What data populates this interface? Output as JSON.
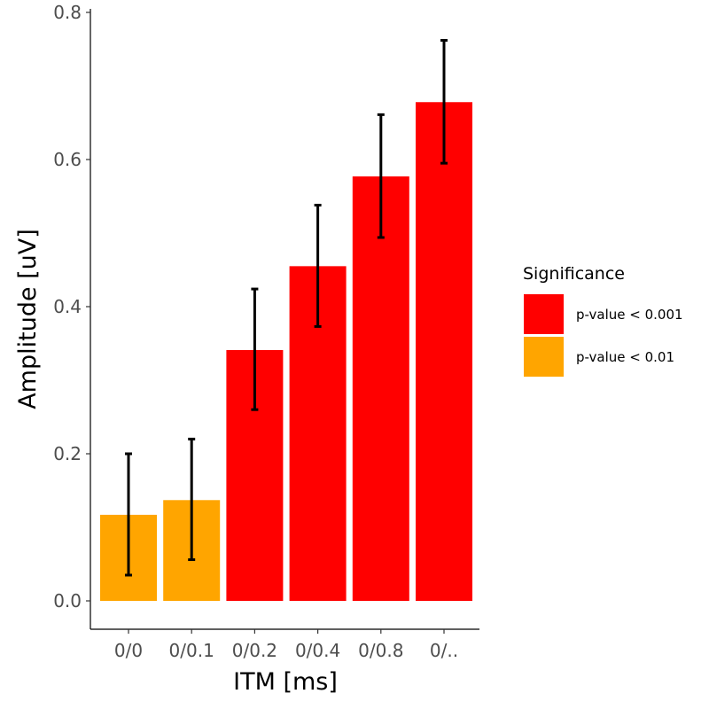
{
  "chart_data": {
    "type": "bar",
    "title": "",
    "xlabel": "ITM [ms]",
    "ylabel": "Amplitude [uV]",
    "ylim": [
      0,
      0.8
    ],
    "y_ticks": [
      "0.0",
      "0.2",
      "0.4",
      "0.6",
      "0.8"
    ],
    "categories": [
      "0/0",
      "0/0.1",
      "0/0.2",
      "0/0.4",
      "0/0.8",
      "0/.."
    ],
    "values": [
      0.117,
      0.137,
      0.341,
      0.455,
      0.577,
      0.678
    ],
    "error_low": [
      0.035,
      0.056,
      0.26,
      0.373,
      0.494,
      0.595
    ],
    "error_high": [
      0.2,
      0.22,
      0.424,
      0.538,
      0.661,
      0.762
    ],
    "significance": [
      "p-value < 0.01",
      "p-value < 0.01",
      "p-value < 0.001",
      "p-value < 0.001",
      "p-value < 0.001",
      "p-value < 0.001"
    ],
    "grid": false,
    "legend": {
      "title": "Significance",
      "position": "right",
      "entries": [
        {
          "label": "p-value < 0.001",
          "color": "#ff0000"
        },
        {
          "label": "p-value < 0.01",
          "color": "#ffa500"
        }
      ]
    }
  }
}
